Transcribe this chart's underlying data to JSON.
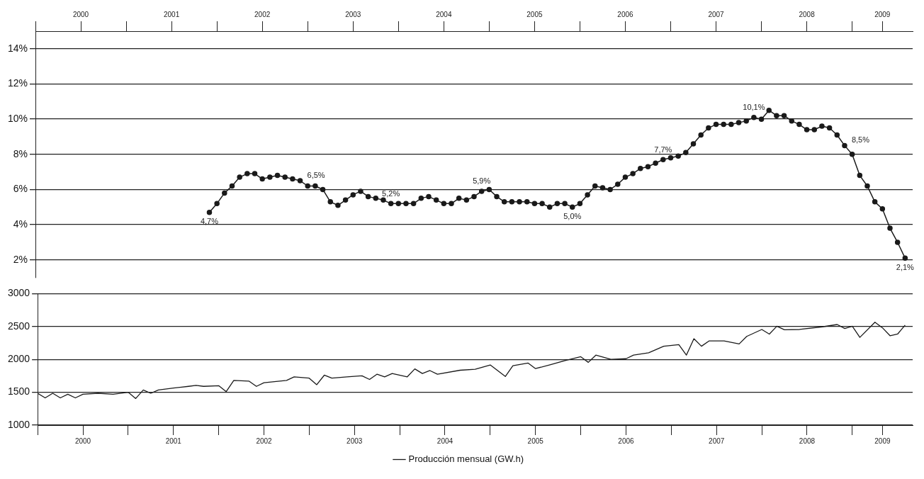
{
  "chart_data": [
    {
      "type": "line",
      "xlim": [
        "2000-01",
        "2009-09"
      ],
      "xticks": [
        {
          "value": "2000-01",
          "label": null
        },
        {
          "value": "2000-07",
          "label": "2000"
        },
        {
          "value": "2001-01",
          "label": null
        },
        {
          "value": "2001-07",
          "label": "2001"
        },
        {
          "value": "2002-01",
          "label": null
        },
        {
          "value": "2002-07",
          "label": "2002"
        },
        {
          "value": "2003-01",
          "label": null
        },
        {
          "value": "2003-07",
          "label": "2003"
        },
        {
          "value": "2004-01",
          "label": null
        },
        {
          "value": "2004-07",
          "label": "2004"
        },
        {
          "value": "2005-01",
          "label": null
        },
        {
          "value": "2005-07",
          "label": "2005"
        },
        {
          "value": "2006-01",
          "label": null
        },
        {
          "value": "2006-07",
          "label": "2006"
        },
        {
          "value": "2007-01",
          "label": null
        },
        {
          "value": "2007-07",
          "label": "2007"
        },
        {
          "value": "2008-01",
          "label": null
        },
        {
          "value": "2008-07",
          "label": "2008"
        },
        {
          "value": "2009-01",
          "label": null
        },
        {
          "value": "2009-05",
          "label": "2009"
        }
      ],
      "ylim": [
        1,
        15
      ],
      "yticks": [
        {
          "value": 2,
          "label": "2%"
        },
        {
          "value": 4,
          "label": "4%"
        },
        {
          "value": 6,
          "label": "6%"
        },
        {
          "value": 8,
          "label": "8%"
        },
        {
          "value": 10,
          "label": "10%"
        },
        {
          "value": 12,
          "label": "12%"
        },
        {
          "value": 14,
          "label": "14%"
        }
      ],
      "grid": "y",
      "legend": false,
      "marker": "circle",
      "line_style": "solid",
      "x": [
        "2001-12",
        "2002-01",
        "2002-02",
        "2002-03",
        "2002-04",
        "2002-05",
        "2002-06",
        "2002-07",
        "2002-08",
        "2002-09",
        "2002-10",
        "2002-11",
        "2002-12",
        "2003-01",
        "2003-02",
        "2003-03",
        "2003-04",
        "2003-05",
        "2003-06",
        "2003-07",
        "2003-08",
        "2003-09",
        "2003-10",
        "2003-11",
        "2003-12",
        "2004-01",
        "2004-02",
        "2004-03",
        "2004-04",
        "2004-05",
        "2004-06",
        "2004-07",
        "2004-08",
        "2004-09",
        "2004-10",
        "2004-11",
        "2004-12",
        "2005-01",
        "2005-02",
        "2005-03",
        "2005-04",
        "2005-05",
        "2005-06",
        "2005-07",
        "2005-08",
        "2005-09",
        "2005-10",
        "2005-11",
        "2005-12",
        "2006-01",
        "2006-02",
        "2006-03",
        "2006-04",
        "2006-05",
        "2006-06",
        "2006-07",
        "2006-08",
        "2006-09",
        "2006-10",
        "2006-11",
        "2006-12",
        "2007-01",
        "2007-02",
        "2007-03",
        "2007-04",
        "2007-05",
        "2007-06",
        "2007-07",
        "2007-08",
        "2007-09",
        "2007-10",
        "2007-11",
        "2007-12",
        "2008-01",
        "2008-02",
        "2008-03",
        "2008-04",
        "2008-05",
        "2008-06",
        "2008-07",
        "2008-08",
        "2008-09",
        "2008-10",
        "2008-11",
        "2008-12",
        "2009-01",
        "2009-02",
        "2009-03",
        "2009-04",
        "2009-05",
        "2009-06",
        "2009-07",
        "2009-08"
      ],
      "series": [
        {
          "color": "#1a1a1a",
          "values": [
            4.7,
            5.2,
            5.8,
            6.2,
            6.7,
            6.9,
            6.9,
            6.6,
            6.7,
            6.8,
            6.7,
            6.6,
            6.5,
            6.2,
            6.2,
            6.0,
            5.3,
            5.1,
            5.4,
            5.7,
            5.9,
            5.6,
            5.5,
            5.4,
            5.2,
            5.2,
            5.2,
            5.2,
            5.5,
            5.6,
            5.4,
            5.2,
            5.2,
            5.5,
            5.4,
            5.6,
            5.9,
            6.0,
            5.6,
            5.3,
            5.3,
            5.3,
            5.3,
            5.2,
            5.2,
            5.0,
            5.2,
            5.2,
            5.0,
            5.2,
            5.7,
            6.2,
            6.1,
            6.0,
            6.3,
            6.7,
            6.9,
            7.2,
            7.3,
            7.5,
            7.7,
            7.8,
            7.9,
            8.1,
            8.6,
            9.1,
            9.5,
            9.7,
            9.7,
            9.7,
            9.8,
            9.9,
            10.1,
            10.0,
            10.5,
            10.2,
            10.2,
            9.9,
            9.7,
            9.4,
            9.4,
            9.6,
            9.5,
            9.1,
            8.5,
            8.0,
            6.8,
            6.2,
            5.3,
            4.9,
            3.8,
            3.0,
            2.1
          ],
          "value_labels": [
            "4,7%",
            null,
            null,
            null,
            null,
            null,
            null,
            null,
            null,
            null,
            null,
            null,
            "6,5%",
            null,
            null,
            null,
            null,
            null,
            null,
            null,
            null,
            null,
            null,
            null,
            "5,2%",
            null,
            null,
            null,
            null,
            null,
            null,
            null,
            null,
            null,
            null,
            null,
            "5,9%",
            null,
            null,
            null,
            null,
            null,
            null,
            null,
            null,
            null,
            null,
            null,
            "5,0%",
            null,
            null,
            null,
            null,
            null,
            null,
            null,
            null,
            null,
            null,
            null,
            "7,7%",
            null,
            null,
            null,
            null,
            null,
            null,
            null,
            null,
            null,
            null,
            null,
            "10,1%",
            null,
            null,
            null,
            null,
            null,
            null,
            null,
            null,
            null,
            null,
            null,
            "8,5%",
            null,
            null,
            null,
            null,
            null,
            null,
            null,
            "2,1%"
          ]
        }
      ]
    },
    {
      "type": "line",
      "xlim": [
        "2000-01",
        "2009-09"
      ],
      "xticks": [
        {
          "value": "2000-01",
          "label": null
        },
        {
          "value": "2000-07",
          "label": "2000"
        },
        {
          "value": "2001-01",
          "label": null
        },
        {
          "value": "2001-07",
          "label": "2001"
        },
        {
          "value": "2002-01",
          "label": null
        },
        {
          "value": "2002-07",
          "label": "2002"
        },
        {
          "value": "2003-01",
          "label": null
        },
        {
          "value": "2003-07",
          "label": "2003"
        },
        {
          "value": "2004-01",
          "label": null
        },
        {
          "value": "2004-07",
          "label": "2004"
        },
        {
          "value": "2005-01",
          "label": null
        },
        {
          "value": "2005-07",
          "label": "2005"
        },
        {
          "value": "2006-01",
          "label": null
        },
        {
          "value": "2006-07",
          "label": "2006"
        },
        {
          "value": "2007-01",
          "label": null
        },
        {
          "value": "2007-07",
          "label": "2007"
        },
        {
          "value": "2008-01",
          "label": null
        },
        {
          "value": "2008-07",
          "label": "2008"
        },
        {
          "value": "2009-01",
          "label": null
        },
        {
          "value": "2009-05",
          "label": "2009"
        }
      ],
      "ylim": [
        1000,
        3000
      ],
      "yticks": [
        1000,
        1500,
        2000,
        2500,
        3000
      ],
      "grid": "y",
      "legend": "bottom",
      "marker": "none",
      "line_style": "solid",
      "x": [
        "2000-01",
        "2000-02",
        "2000-03",
        "2000-04",
        "2000-05",
        "2000-06",
        "2000-07",
        "2000-09",
        "2000-11",
        "2001-01",
        "2001-02",
        "2001-03",
        "2001-04",
        "2001-05",
        "2001-07",
        "2001-09",
        "2001-10",
        "2001-11",
        "2002-01",
        "2002-02",
        "2002-03",
        "2002-05",
        "2002-06",
        "2002-07",
        "2002-10",
        "2002-11",
        "2003-01",
        "2003-02",
        "2003-03",
        "2003-04",
        "2003-06",
        "2003-08",
        "2003-09",
        "2003-10",
        "2003-11",
        "2003-12",
        "2004-02",
        "2004-03",
        "2004-04",
        "2004-05",
        "2004-06",
        "2004-09",
        "2004-11",
        "2005-01",
        "2005-03",
        "2005-04",
        "2005-06",
        "2005-07",
        "2005-09",
        "2005-11",
        "2006-01",
        "2006-02",
        "2006-03",
        "2006-05",
        "2006-07",
        "2006-08",
        "2006-10",
        "2006-12",
        "2007-02",
        "2007-03",
        "2007-04",
        "2007-05",
        "2007-06",
        "2007-08",
        "2007-10",
        "2007-11",
        "2008-01",
        "2008-02",
        "2008-03",
        "2008-04",
        "2008-06",
        "2008-09",
        "2008-11",
        "2008-12",
        "2009-01",
        "2009-02",
        "2009-04",
        "2009-05",
        "2009-06",
        "2009-07",
        "2009-08"
      ],
      "series": [
        {
          "name": "Producción mensual (GW.h)",
          "color": "#1a1a1a",
          "values": [
            1485,
            1415,
            1485,
            1415,
            1470,
            1415,
            1470,
            1485,
            1470,
            1500,
            1405,
            1535,
            1485,
            1535,
            1565,
            1590,
            1605,
            1590,
            1600,
            1510,
            1680,
            1670,
            1590,
            1645,
            1680,
            1735,
            1715,
            1615,
            1760,
            1715,
            1735,
            1750,
            1695,
            1775,
            1735,
            1785,
            1735,
            1855,
            1785,
            1830,
            1775,
            1835,
            1850,
            1915,
            1740,
            1905,
            1945,
            1860,
            1920,
            1985,
            2040,
            1955,
            2065,
            2000,
            2010,
            2065,
            2100,
            2200,
            2225,
            2065,
            2315,
            2200,
            2280,
            2280,
            2235,
            2350,
            2455,
            2385,
            2505,
            2450,
            2455,
            2495,
            2530,
            2470,
            2505,
            2335,
            2565,
            2480,
            2360,
            2385,
            2520
          ]
        }
      ]
    }
  ]
}
